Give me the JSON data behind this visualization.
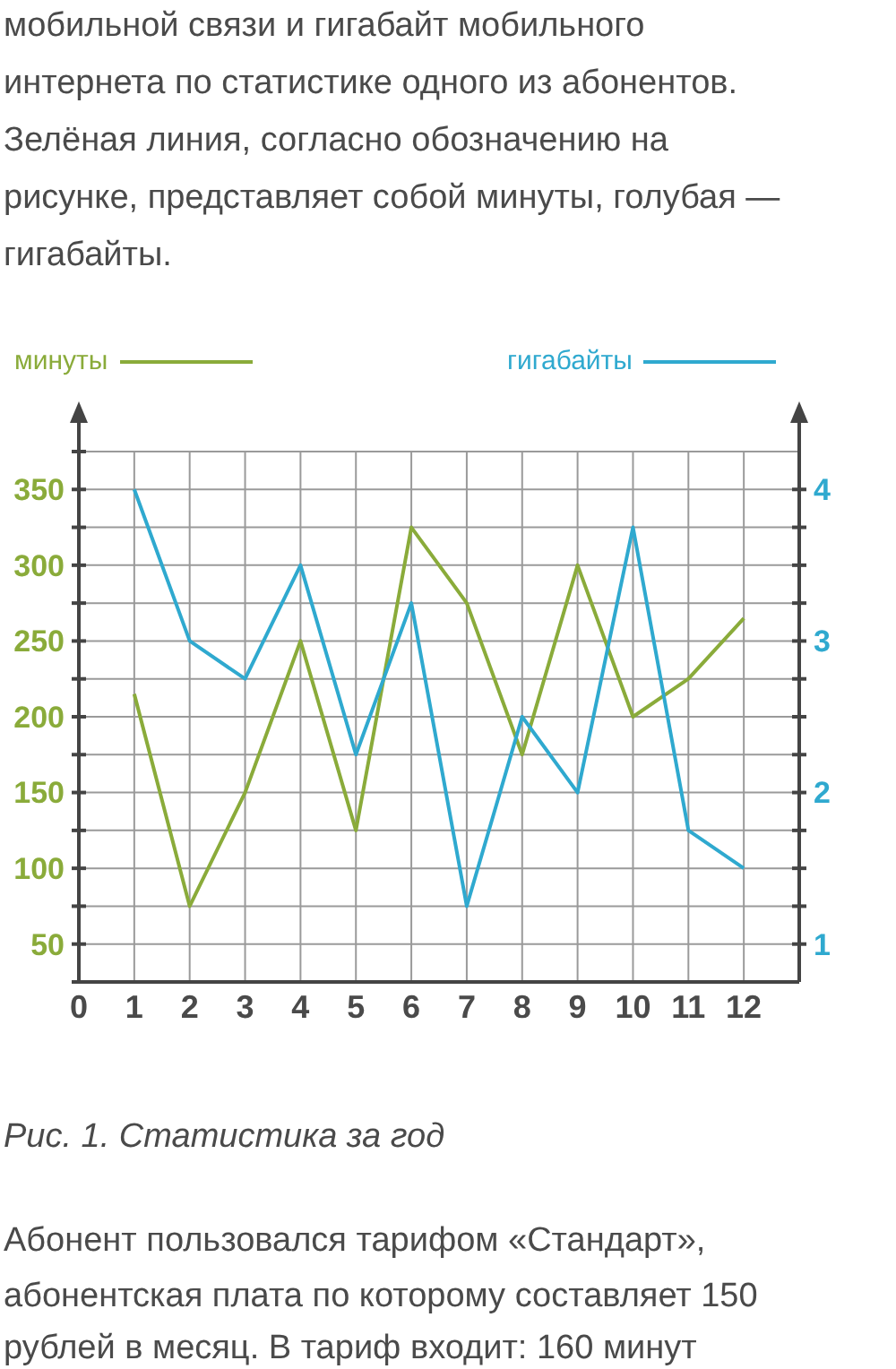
{
  "chart_data": {
    "type": "line",
    "x": [
      1,
      2,
      3,
      4,
      5,
      6,
      7,
      8,
      9,
      10,
      11,
      12
    ],
    "series": [
      {
        "name": "минуты",
        "color": "#8aab3a",
        "values": [
          215,
          75,
          150,
          250,
          125,
          325,
          275,
          175,
          300,
          200,
          225,
          265
        ]
      },
      {
        "name": "гигабайты",
        "color": "#2fa9cf",
        "axis": "y2",
        "values": [
          4,
          3,
          2.75,
          3.5,
          2.25,
          3.25,
          1.25,
          2.5,
          2,
          3.75,
          1.75,
          1.5
        ]
      }
    ],
    "xlim": [
      0,
      13
    ],
    "xticks": [
      0,
      1,
      2,
      3,
      4,
      5,
      6,
      7,
      8,
      9,
      10,
      11,
      12
    ],
    "ylim": [
      25,
      375
    ],
    "yticks": [
      {
        "value": 25,
        "label": null
      },
      50,
      {
        "value": 75,
        "label": null
      },
      100,
      {
        "value": 125,
        "label": null
      },
      150,
      {
        "value": 175,
        "label": null
      },
      200,
      {
        "value": 225,
        "label": null
      },
      250,
      {
        "value": 275,
        "label": null
      },
      300,
      {
        "value": 325,
        "label": null
      },
      350,
      {
        "value": 375,
        "label": null
      }
    ],
    "y2lim": [
      0.75,
      4.25
    ],
    "y2ticks": [
      1,
      {
        "value": 1.25,
        "label": null
      },
      {
        "value": 1.5,
        "label": null
      },
      {
        "value": 1.75,
        "label": null
      },
      2,
      {
        "value": 2.25,
        "label": null
      },
      {
        "value": 2.5,
        "label": null
      },
      {
        "value": 2.75,
        "label": null
      },
      3,
      {
        "value": 3.25,
        "label": null
      },
      {
        "value": 3.5,
        "label": null
      },
      {
        "value": 3.75,
        "label": null
      },
      4
    ],
    "grid": true,
    "legend": "top",
    "marker": "none",
    "line_style": "solid",
    "annotations": [
      "мобильной связи и гигабайт мобильного",
      "интернета по статистике одного из абонентов.",
      "Зелёная линия, согласно обозначению на",
      "рисунке, представляет собой минуты, голубая —",
      "гигабайты.",
      "Рис. 1. Статистика за год",
      "Абонент пользовался тарифом «Стандарт»,",
      "абонентская плата по которому составляет 150",
      "рублей в месяц. В тариф входит: 160 минут"
    ]
  }
}
